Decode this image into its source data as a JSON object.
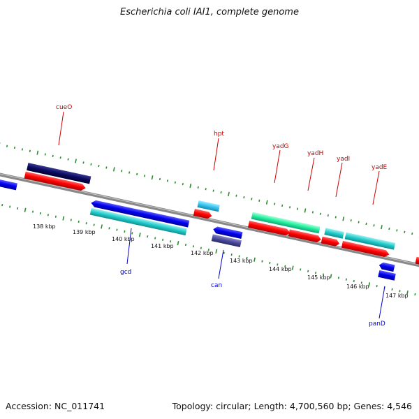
{
  "title": "Escherichia coli IAI1, complete genome",
  "footer": {
    "accession": "Accession: NC_011741",
    "summary": "Topology: circular; Length: 4,700,560 bp; Genes: 4,546"
  },
  "ticks": [
    {
      "label": "138 kbp",
      "kbp": 138
    },
    {
      "label": "139 kbp",
      "kbp": 139
    },
    {
      "label": "140 kbp",
      "kbp": 140
    },
    {
      "label": "141 kbp",
      "kbp": 141
    },
    {
      "label": "142 kbp",
      "kbp": 142
    },
    {
      "label": "143 kbp",
      "kbp": 143
    },
    {
      "label": "144 kbp",
      "kbp": 144
    },
    {
      "label": "145 kbp",
      "kbp": 145
    },
    {
      "label": "146 kbp",
      "kbp": 146
    },
    {
      "label": "147 kbp",
      "kbp": 147
    }
  ],
  "gene_labels": [
    {
      "name": "cueO",
      "strand": "forward"
    },
    {
      "name": "hpt",
      "strand": "forward"
    },
    {
      "name": "yadG",
      "strand": "forward"
    },
    {
      "name": "yadH",
      "strand": "forward"
    },
    {
      "name": "yadI",
      "strand": "forward"
    },
    {
      "name": "yadE",
      "strand": "forward"
    },
    {
      "name": "gcd",
      "strand": "reverse"
    },
    {
      "name": "can",
      "strand": "reverse"
    },
    {
      "name": "panD",
      "strand": "reverse"
    }
  ],
  "colors": {
    "forward_label": "#cc0000",
    "reverse_label": "#0000cc",
    "backbone": "#888888",
    "tick": "#2e8b2e",
    "cds": "#ff0000",
    "reverse_gene": "#0000ee",
    "forward_gene": "#00ccaa"
  }
}
